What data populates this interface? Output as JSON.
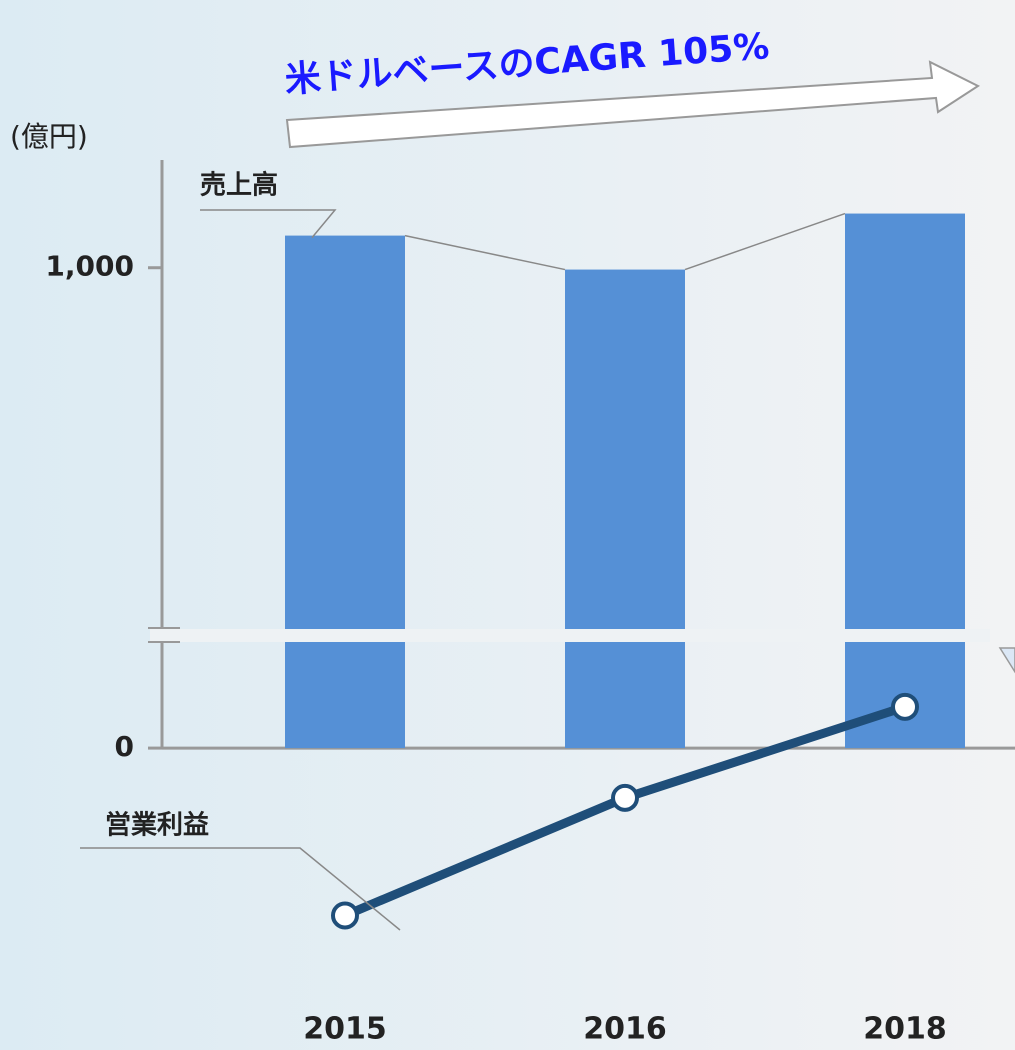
{
  "chart_data": {
    "type": "bar",
    "annotation": "米ドルベースのCAGR  105%",
    "y_unit_label": "(億円)",
    "categories": [
      "2015",
      "2016",
      "2018"
    ],
    "series": [
      {
        "name": "売上高",
        "type": "bar",
        "color": "#5590d6",
        "values": [
          1035,
          998,
          1059
        ]
      },
      {
        "name": "営業利益",
        "type": "line",
        "color": "#1f4e79",
        "values": [
          -296,
          -88,
          73
        ]
      }
    ],
    "ylim": [
      -350,
      1150
    ],
    "axis_break": [
      200,
      600
    ],
    "yticks": [
      0,
      {
        "value": 1000,
        "label": "1,000"
      }
    ]
  }
}
